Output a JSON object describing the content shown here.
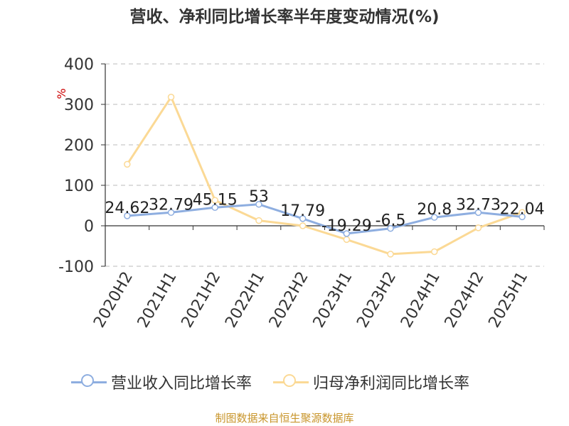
{
  "title": "营收、净利同比增长率半年度变动情况(%)",
  "source": "制图数据来自恒生聚源数据库",
  "colors": {
    "revenue": "#8eaee0",
    "profit": "#fbd995",
    "grid": "#bbbbbb",
    "axis": "#333333",
    "unit": "#cc0000"
  },
  "chart_data": {
    "type": "line",
    "categories": [
      "2020H2",
      "2021H1",
      "2021H2",
      "2022H1",
      "2022H2",
      "2023H1",
      "2023H2",
      "2024H1",
      "2024H2",
      "2025H1"
    ],
    "ylabel": "%",
    "ylim": [
      -100,
      400
    ],
    "yticks": [
      "400",
      "300",
      "200",
      "100",
      "0",
      "-100"
    ],
    "grid": true,
    "legend_position": "bottom",
    "series": [
      {
        "name": "营业收入同比增长率",
        "values": [
          24.62,
          32.79,
          45.15,
          53,
          17.79,
          -19.29,
          -6.5,
          20.8,
          32.73,
          22.04
        ],
        "labels": [
          "24.62",
          "32.79",
          "45.15",
          "53",
          "17.79",
          "-19.29",
          "-6.5",
          "20.8",
          "32.73",
          "22.04"
        ]
      },
      {
        "name": "归母净利润同比增长率",
        "values": [
          152,
          318,
          63,
          13,
          0,
          -34,
          -70,
          -64,
          -5,
          33
        ]
      }
    ]
  }
}
